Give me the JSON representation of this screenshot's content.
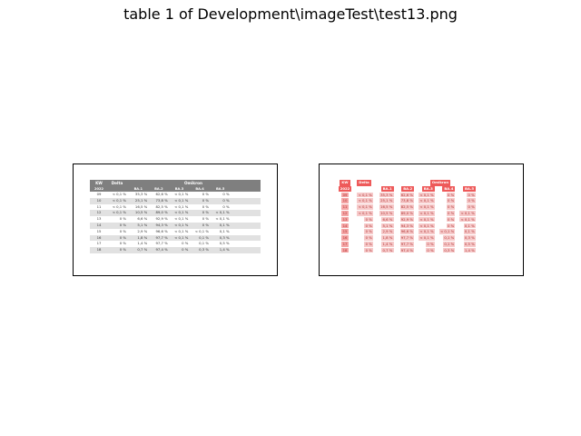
{
  "window": {
    "title": "table 1 of Development\\imageTest\\test13.png"
  },
  "table": {
    "header": {
      "kw": "KW",
      "year": "2022",
      "delta": "Delta",
      "omicron": "Omikron",
      "subcolumns": [
        "BA.1",
        "BA.2",
        "BA.3",
        "BA.4",
        "BA.5"
      ]
    },
    "rows": [
      {
        "kw": "09",
        "delta": "< 0,1 %",
        "ba1": "35,3 %",
        "ba2": "62,6 %",
        "ba3": "< 0,1 %",
        "ba4": "0 %",
        "ba5": "0 %"
      },
      {
        "kw": "10",
        "delta": "< 0,1 %",
        "ba1": "25,1 %",
        "ba2": "73,8 %",
        "ba3": "< 0,1 %",
        "ba4": "0 %",
        "ba5": "0 %"
      },
      {
        "kw": "11",
        "delta": "< 0,1 %",
        "ba1": "16,5 %",
        "ba2": "82,5 %",
        "ba3": "< 0,1 %",
        "ba4": "0 %",
        "ba5": "0 %"
      },
      {
        "kw": "12",
        "delta": "< 0,1 %",
        "ba1": "10,5 %",
        "ba2": "89,0 %",
        "ba3": "< 0,1 %",
        "ba4": "0 %",
        "ba5": "< 0,1 %"
      },
      {
        "kw": "13",
        "delta": "0 %",
        "ba1": "6,6 %",
        "ba2": "92,9 %",
        "ba3": "< 0,1 %",
        "ba4": "0 %",
        "ba5": "< 0,1 %"
      },
      {
        "kw": "14",
        "delta": "0 %",
        "ba1": "5,1 %",
        "ba2": "94,3 %",
        "ba3": "< 0,1 %",
        "ba4": "0 %",
        "ba5": "0,1 %"
      },
      {
        "kw": "15",
        "delta": "0 %",
        "ba1": "2,9 %",
        "ba2": "96,6 %",
        "ba3": "< 0,1 %",
        "ba4": "< 0,1 %",
        "ba5": "0,1 %"
      },
      {
        "kw": "16",
        "delta": "0 %",
        "ba1": "1,8 %",
        "ba2": "97,7 %",
        "ba3": "< 0,1 %",
        "ba4": "0,1 %",
        "ba5": "0,3 %"
      },
      {
        "kw": "17",
        "delta": "0 %",
        "ba1": "1,4 %",
        "ba2": "97,7 %",
        "ba3": "0 %",
        "ba4": "0,1 %",
        "ba5": "0,5 %"
      },
      {
        "kw": "18",
        "delta": "0 %",
        "ba1": "0,7 %",
        "ba2": "97,4 %",
        "ba3": "0 %",
        "ba4": "0,3 %",
        "ba5": "1,4 %"
      }
    ]
  },
  "colors": {
    "header_gray": "#7f7f7f",
    "row_shade": "#e1e1e1",
    "highlight_header": "#ee5a5a",
    "highlight_cell": "#f6c9c9"
  }
}
